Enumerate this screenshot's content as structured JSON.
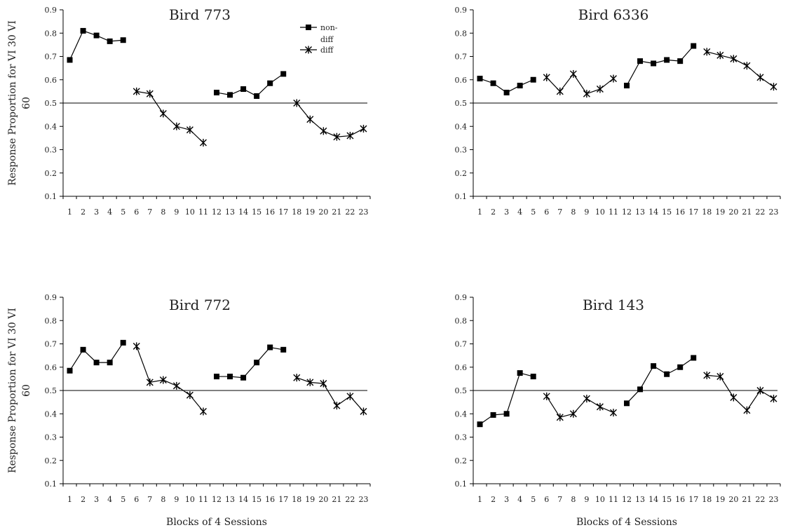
{
  "figure": {
    "xlabel_bottom": "Blocks of 4 Sessions",
    "ylabel": [
      "Response Proportion for VI 30 VI",
      "60"
    ]
  },
  "legend": {
    "nondiff_label": [
      "non-",
      "diff"
    ],
    "diff_label": "diff"
  },
  "chart_data": [
    {
      "type": "line",
      "title": "Bird 773",
      "x": [
        1,
        2,
        3,
        4,
        5,
        6,
        7,
        8,
        9,
        10,
        11,
        12,
        13,
        14,
        15,
        16,
        17,
        18,
        19,
        20,
        21,
        22,
        23
      ],
      "ylim": [
        0.1,
        0.9
      ],
      "yticks": [
        "0.1",
        "0.2",
        "0.3",
        "0.4",
        "0.5",
        "0.6",
        "0.7",
        "0.8",
        "0.9"
      ],
      "reference_line": 0.5,
      "segments": [
        {
          "marker": "square",
          "x": [
            1,
            2,
            3,
            4,
            5
          ],
          "y": [
            0.685,
            0.81,
            0.79,
            0.765,
            0.77
          ]
        },
        {
          "marker": "star",
          "x": [
            6,
            7,
            8,
            9,
            10,
            11
          ],
          "y": [
            0.55,
            0.54,
            0.455,
            0.4,
            0.385,
            0.33
          ]
        },
        {
          "marker": "square",
          "x": [
            12,
            13,
            14,
            15,
            16,
            17
          ],
          "y": [
            0.545,
            0.535,
            0.56,
            0.53,
            0.585,
            0.625
          ]
        },
        {
          "marker": "star",
          "x": [
            18,
            19,
            20,
            21,
            22,
            23
          ],
          "y": [
            0.5,
            0.43,
            0.38,
            0.355,
            0.36,
            0.39
          ]
        }
      ]
    },
    {
      "type": "line",
      "title": "Bird 6336",
      "x": [
        1,
        2,
        3,
        4,
        5,
        6,
        7,
        8,
        9,
        10,
        11,
        12,
        13,
        14,
        15,
        16,
        17,
        18,
        19,
        20,
        21,
        22,
        23
      ],
      "ylim": [
        0.1,
        0.9
      ],
      "yticks": [
        "0.1",
        "0.2",
        "0.3",
        "0.4",
        "0.5",
        "0.6",
        "0.7",
        "0.8",
        "0.9"
      ],
      "reference_line": 0.5,
      "segments": [
        {
          "marker": "square",
          "x": [
            1,
            2,
            3,
            4,
            5
          ],
          "y": [
            0.605,
            0.585,
            0.545,
            0.575,
            0.6
          ]
        },
        {
          "marker": "star",
          "x": [
            6,
            7,
            8,
            9,
            10,
            11
          ],
          "y": [
            0.61,
            0.55,
            0.625,
            0.54,
            0.56,
            0.605
          ]
        },
        {
          "marker": "square",
          "x": [
            12,
            13,
            14,
            15,
            16,
            17
          ],
          "y": [
            0.575,
            0.68,
            0.67,
            0.685,
            0.68,
            0.745
          ]
        },
        {
          "marker": "star",
          "x": [
            18,
            19,
            20,
            21,
            22,
            23
          ],
          "y": [
            0.72,
            0.705,
            0.69,
            0.66,
            0.61,
            0.57
          ]
        }
      ]
    },
    {
      "type": "line",
      "title": "Bird 772",
      "x": [
        1,
        2,
        3,
        4,
        5,
        6,
        7,
        8,
        9,
        10,
        11,
        12,
        13,
        14,
        15,
        16,
        17,
        18,
        19,
        20,
        21,
        22,
        23
      ],
      "ylim": [
        0.1,
        0.9
      ],
      "yticks": [
        "0.1",
        "0.2",
        "0.3",
        "0.4",
        "0.5",
        "0.6",
        "0.7",
        "0.8",
        "0.9"
      ],
      "reference_line": 0.5,
      "segments": [
        {
          "marker": "square",
          "x": [
            1,
            2,
            3,
            4,
            5
          ],
          "y": [
            0.585,
            0.675,
            0.62,
            0.62,
            0.705
          ]
        },
        {
          "marker": "star",
          "x": [
            6,
            7,
            8,
            9,
            10,
            11
          ],
          "y": [
            0.69,
            0.535,
            0.545,
            0.52,
            0.48,
            0.41
          ]
        },
        {
          "marker": "square",
          "x": [
            12,
            13,
            14,
            15,
            16,
            17
          ],
          "y": [
            0.56,
            0.56,
            0.555,
            0.62,
            0.685,
            0.675
          ]
        },
        {
          "marker": "star",
          "x": [
            18,
            19,
            20,
            21,
            22,
            23
          ],
          "y": [
            0.555,
            0.535,
            0.53,
            0.435,
            0.475,
            0.41
          ]
        }
      ]
    },
    {
      "type": "line",
      "title": "Bird 143",
      "x": [
        1,
        2,
        3,
        4,
        5,
        6,
        7,
        8,
        9,
        10,
        11,
        12,
        13,
        14,
        15,
        16,
        17,
        18,
        19,
        20,
        21,
        22,
        23
      ],
      "ylim": [
        0.1,
        0.9
      ],
      "yticks": [
        "0.1",
        "0.2",
        "0.3",
        "0.4",
        "0.5",
        "0.6",
        "0.7",
        "0.8",
        "0.9"
      ],
      "reference_line": 0.5,
      "segments": [
        {
          "marker": "square",
          "x": [
            1,
            2,
            3,
            4,
            5
          ],
          "y": [
            0.355,
            0.395,
            0.4,
            0.575,
            0.56
          ]
        },
        {
          "marker": "star",
          "x": [
            6,
            7,
            8,
            9,
            10,
            11
          ],
          "y": [
            0.475,
            0.385,
            0.4,
            0.465,
            0.43,
            0.405
          ]
        },
        {
          "marker": "square",
          "x": [
            12,
            13,
            14,
            15,
            16,
            17
          ],
          "y": [
            0.445,
            0.505,
            0.605,
            0.57,
            0.6,
            0.64
          ]
        },
        {
          "marker": "star",
          "x": [
            18,
            19,
            20,
            21,
            22,
            23
          ],
          "y": [
            0.565,
            0.56,
            0.47,
            0.415,
            0.5,
            0.465
          ]
        }
      ]
    }
  ]
}
